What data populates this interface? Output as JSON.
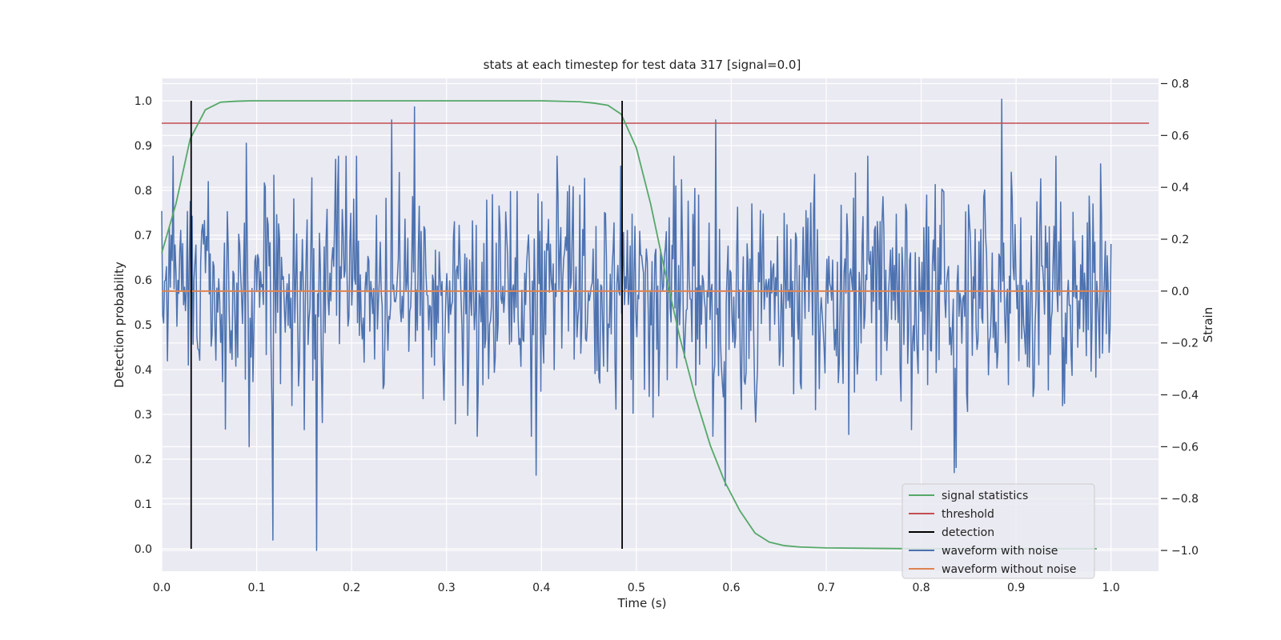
{
  "chart_data": {
    "type": "line",
    "title": "stats at each timestep for test data 317 [signal=0.0]",
    "xlabel": "Time (s)",
    "ylabel": "Detection probability",
    "y2label": "Strain",
    "xlim": [
      0.0,
      1.05
    ],
    "ylim": [
      -0.05,
      1.05
    ],
    "y2lim": [
      -1.08,
      0.82
    ],
    "xticks": [
      0.0,
      0.1,
      0.2,
      0.3,
      0.4,
      0.5,
      0.6,
      0.7,
      0.8,
      0.9,
      1.0
    ],
    "xtick_labels": [
      "0.0",
      "0.1",
      "0.2",
      "0.3",
      "0.4",
      "0.5",
      "0.6",
      "0.7",
      "0.8",
      "0.9",
      "1.0"
    ],
    "yticks": [
      0.0,
      0.1,
      0.2,
      0.3,
      0.4,
      0.5,
      0.6,
      0.7,
      0.8,
      0.9,
      1.0
    ],
    "ytick_labels": [
      "0.0",
      "0.1",
      "0.2",
      "0.3",
      "0.4",
      "0.5",
      "0.6",
      "0.7",
      "0.8",
      "0.9",
      "1.0"
    ],
    "y2ticks": [
      -1.0,
      -0.8,
      -0.6,
      -0.4,
      -0.2,
      0.0,
      0.2,
      0.4,
      0.6,
      0.8
    ],
    "y2tick_labels": [
      "−1.0",
      "−0.8",
      "−0.6",
      "−0.4",
      "−0.2",
      "0.0",
      "0.2",
      "0.4",
      "0.6",
      "0.8"
    ],
    "grid": true,
    "legend_position": "lower-right",
    "colors": {
      "background": "#eaeaf2",
      "grid": "#ffffff",
      "signal": "#55a868",
      "threshold": "#c44e52",
      "detection": "#000000",
      "noisy": "#4c72b0",
      "clean": "#dd8452"
    },
    "series": [
      {
        "name": "signal statistics",
        "axis": "left",
        "x": [
          0.0,
          0.015,
          0.03,
          0.046,
          0.062,
          0.078,
          0.094,
          0.11,
          0.2,
          0.3,
          0.4,
          0.44,
          0.455,
          0.47,
          0.484,
          0.5,
          0.515,
          0.53,
          0.546,
          0.562,
          0.578,
          0.593,
          0.609,
          0.625,
          0.64,
          0.656,
          0.672,
          0.7,
          0.75,
          0.8,
          0.85,
          0.9,
          0.95,
          0.985
        ],
        "y": [
          0.66,
          0.77,
          0.915,
          0.98,
          0.997,
          0.999,
          1.0,
          1.0,
          1.0,
          1.0,
          1.0,
          0.998,
          0.995,
          0.99,
          0.97,
          0.895,
          0.77,
          0.62,
          0.47,
          0.34,
          0.23,
          0.15,
          0.085,
          0.035,
          0.015,
          0.007,
          0.004,
          0.002,
          0.001,
          0.0,
          0.0,
          0.0,
          0.0,
          0.0
        ]
      },
      {
        "name": "threshold",
        "axis": "left",
        "x": [
          0.0,
          1.04
        ],
        "y": [
          0.95,
          0.95
        ]
      },
      {
        "name": "detection",
        "axis": "left",
        "vlines": [
          0.031,
          0.485
        ],
        "ymin": 0.0,
        "ymax": 1.0
      },
      {
        "name": "waveform with noise",
        "axis": "right",
        "x_range": [
          0.0,
          1.0
        ],
        "n_points": 1000,
        "noise_std": 0.22,
        "spikes": [
          {
            "x": 0.266,
            "y": 0.71
          },
          {
            "x": 0.242,
            "y": 0.66
          },
          {
            "x": 0.584,
            "y": 0.66
          },
          {
            "x": 0.885,
            "y": 0.74
          },
          {
            "x": 0.089,
            "y": 0.57
          },
          {
            "x": 0.012,
            "y": 0.52
          },
          {
            "x": 0.163,
            "y": -1.0
          },
          {
            "x": 0.117,
            "y": -0.96
          },
          {
            "x": 0.394,
            "y": -0.71
          },
          {
            "x": 0.594,
            "y": -0.75
          },
          {
            "x": 0.835,
            "y": -0.7
          },
          {
            "x": 0.837,
            "y": -0.68
          },
          {
            "x": 0.092,
            "y": -0.6
          }
        ]
      },
      {
        "name": "waveform without noise",
        "axis": "right",
        "x": [
          0.0,
          1.0
        ],
        "y": [
          0.0,
          0.0
        ]
      }
    ],
    "legend": [
      "signal statistics",
      "threshold",
      "detection",
      "waveform with noise",
      "waveform without noise"
    ]
  }
}
